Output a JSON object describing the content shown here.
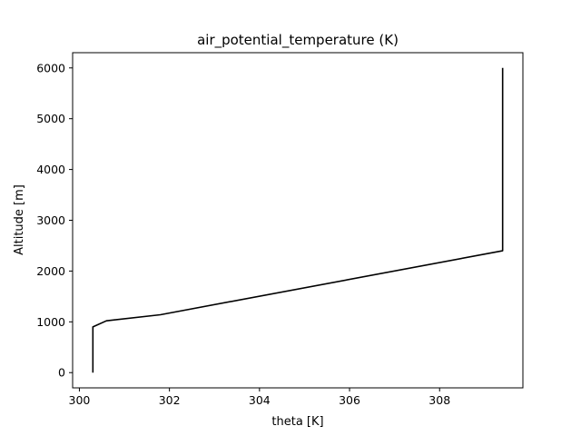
{
  "chart_data": {
    "type": "line",
    "title": "air_potential_temperature (K)",
    "xlabel": "theta [K]",
    "ylabel": "Altitude [m]",
    "xlim": [
      299.85,
      309.85
    ],
    "ylim": [
      -300,
      6300
    ],
    "xticks": [
      300,
      302,
      304,
      306,
      308
    ],
    "xtick_labels": [
      "300",
      "302",
      "304",
      "306",
      "308"
    ],
    "yticks": [
      0,
      1000,
      2000,
      3000,
      4000,
      5000,
      6000
    ],
    "ytick_labels": [
      "0",
      "1000",
      "2000",
      "3000",
      "4000",
      "5000",
      "6000"
    ],
    "grid": false,
    "series": [
      {
        "color": "#000000",
        "x": [
          300.3,
          300.3,
          300.6,
          301.8,
          309.4,
          309.4
        ],
        "y": [
          0,
          900,
          1020,
          1140,
          2400,
          6000
        ]
      }
    ]
  }
}
